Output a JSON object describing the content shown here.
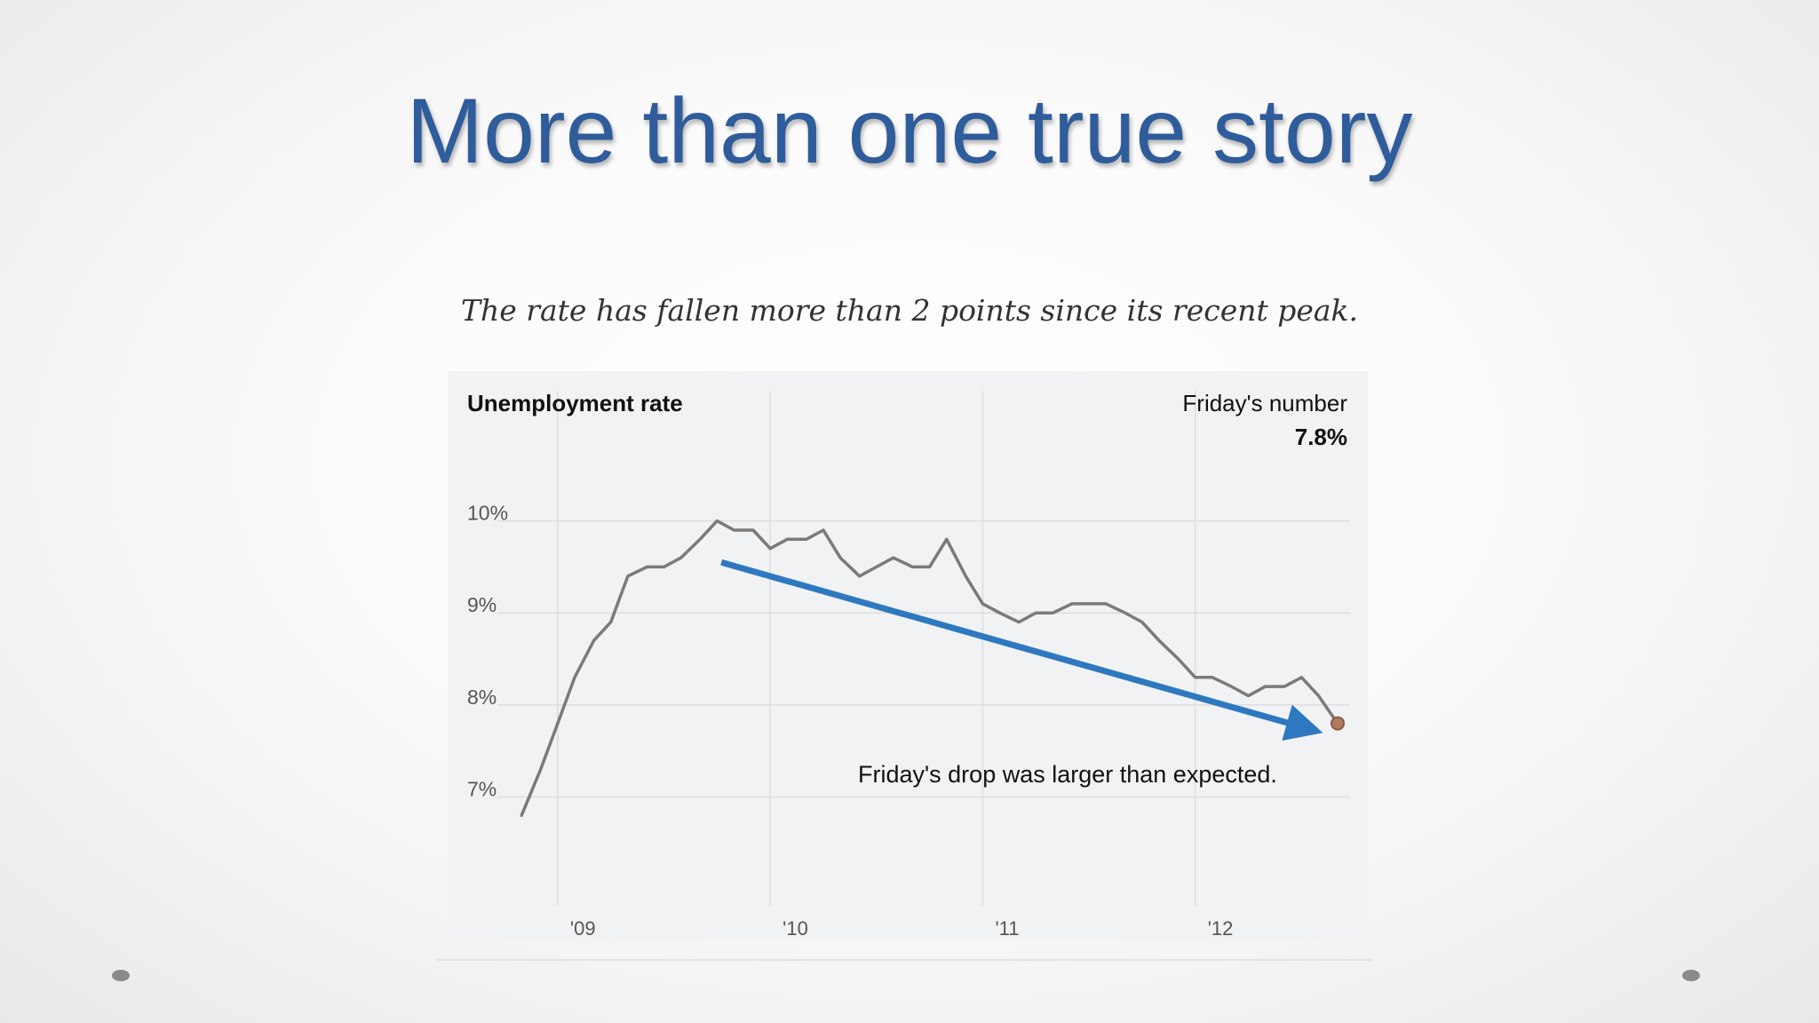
{
  "slide": {
    "title": "More than one true story",
    "subtitle": "The rate has fallen more than 2 points since its recent peak."
  },
  "chart_data": {
    "type": "line",
    "title": "Unemployment rate",
    "callout_label": "Friday's number",
    "callout_value": "7.8%",
    "annotation": "Friday's drop was larger than expected.",
    "ylim": [
      6.3,
      10.45
    ],
    "xlim": [
      2008.85,
      2012.72
    ],
    "y_ticks": [
      {
        "value": 10,
        "label": "10%"
      },
      {
        "value": 9,
        "label": "9%"
      },
      {
        "value": 8,
        "label": "8%"
      },
      {
        "value": 7,
        "label": "7%"
      }
    ],
    "x_ticks": [
      {
        "value": 2009,
        "label": "'09"
      },
      {
        "value": 2010,
        "label": "'10"
      },
      {
        "value": 2011,
        "label": "'11"
      },
      {
        "value": 2012,
        "label": "'12"
      }
    ],
    "grid": true,
    "series": [
      {
        "color": "#7a7a7a",
        "x": [
          2008.83,
          2008.92,
          2009.0,
          2009.08,
          2009.17,
          2009.25,
          2009.33,
          2009.42,
          2009.5,
          2009.58,
          2009.67,
          2009.75,
          2009.83,
          2009.92,
          2010.0,
          2010.08,
          2010.17,
          2010.25,
          2010.33,
          2010.42,
          2010.5,
          2010.58,
          2010.67,
          2010.75,
          2010.83,
          2010.92,
          2011.0,
          2011.08,
          2011.17,
          2011.25,
          2011.33,
          2011.42,
          2011.5,
          2011.58,
          2011.67,
          2011.75,
          2011.83,
          2011.92,
          2012.0,
          2012.08,
          2012.17,
          2012.25,
          2012.33,
          2012.42,
          2012.5,
          2012.58,
          2012.67
        ],
        "y": [
          6.8,
          7.3,
          7.8,
          8.3,
          8.7,
          8.9,
          9.4,
          9.5,
          9.5,
          9.6,
          9.8,
          10.0,
          9.9,
          9.9,
          9.7,
          9.8,
          9.8,
          9.9,
          9.6,
          9.4,
          9.5,
          9.6,
          9.5,
          9.5,
          9.8,
          9.4,
          9.1,
          9.0,
          8.9,
          9.0,
          9.0,
          9.1,
          9.1,
          9.1,
          9.0,
          8.9,
          8.7,
          8.5,
          8.3,
          8.3,
          8.2,
          8.1,
          8.2,
          8.2,
          8.3,
          8.1,
          7.8
        ]
      }
    ],
    "trend_arrow": {
      "color": "#2e78bf",
      "from": {
        "x": 2009.77,
        "y": 9.55
      },
      "to": {
        "x": 2012.55,
        "y": 7.73
      }
    },
    "end_marker": {
      "x": 2012.67,
      "y": 7.8,
      "color": "#b07a5e"
    }
  }
}
